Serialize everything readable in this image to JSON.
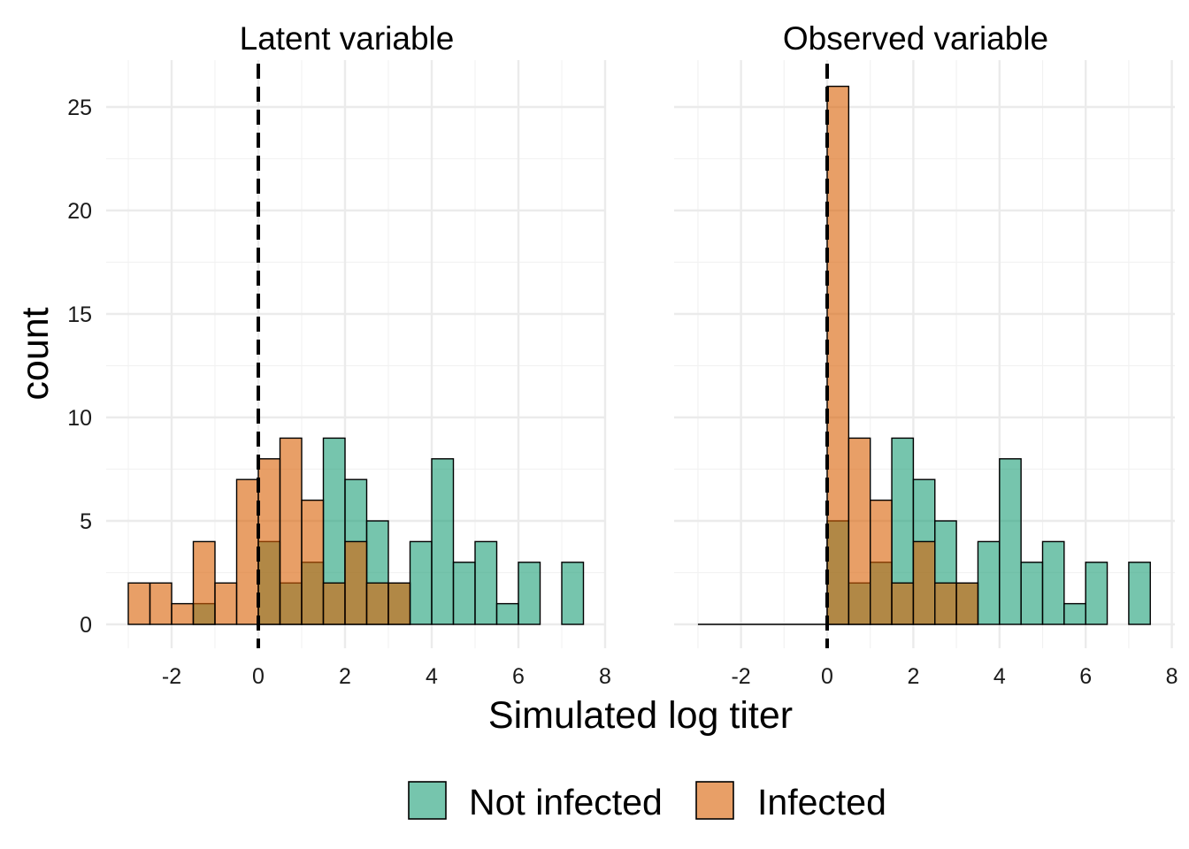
{
  "chart_data": {
    "type": "bar",
    "subtype": "overlaid-histogram",
    "xlabel": "Simulated log titer",
    "ylabel": "count",
    "bin_width": 0.5,
    "xlim": [
      -3.25,
      8
    ],
    "ylim": [
      0,
      26
    ],
    "x_ticks": [
      -2,
      0,
      2,
      4,
      6,
      8
    ],
    "y_ticks": [
      0,
      5,
      10,
      15,
      20,
      25
    ],
    "vline_x": 0,
    "grid": true,
    "legend_position": "bottom",
    "colors": {
      "Not infected": "#1b9e77",
      "Infected": "#d95f02"
    },
    "bar_opacity": 0.6,
    "legend": [
      {
        "key": "not_infected",
        "label": "Not infected",
        "color": "#1b9e77"
      },
      {
        "key": "infected",
        "label": "Infected",
        "color": "#d95f02"
      }
    ],
    "panels": [
      {
        "title": "Latent variable",
        "series": [
          {
            "name": "Not infected",
            "bin_centers": [
              -1.25,
              0.25,
              0.75,
              1.25,
              1.75,
              2.25,
              2.75,
              3.25,
              3.75,
              4.25,
              4.75,
              5.25,
              5.75,
              6.25,
              7.25
            ],
            "values": [
              1,
              4,
              2,
              3,
              9,
              7,
              5,
              2,
              4,
              8,
              3,
              4,
              1,
              3,
              3
            ]
          },
          {
            "name": "Infected",
            "bin_centers": [
              -2.75,
              -2.25,
              -1.75,
              -1.25,
              -0.75,
              -0.25,
              0.25,
              0.75,
              1.25,
              1.75,
              2.25,
              2.75,
              3.25
            ],
            "values": [
              2,
              2,
              1,
              4,
              2,
              7,
              8,
              9,
              6,
              2,
              4,
              2,
              2
            ]
          }
        ]
      },
      {
        "title": "Observed variable",
        "series": [
          {
            "name": "Not infected",
            "bin_centers": [
              0.25,
              0.75,
              1.25,
              1.75,
              2.25,
              2.75,
              3.25,
              3.75,
              4.25,
              4.75,
              5.25,
              5.75,
              6.25,
              7.25
            ],
            "values": [
              5,
              2,
              3,
              9,
              7,
              5,
              2,
              4,
              8,
              3,
              4,
              1,
              3,
              3
            ]
          },
          {
            "name": "Infected",
            "bin_centers": [
              0.25,
              0.75,
              1.25,
              1.75,
              2.25,
              2.75,
              3.25
            ],
            "values": [
              26,
              9,
              6,
              2,
              4,
              2,
              2
            ]
          }
        ]
      }
    ]
  }
}
